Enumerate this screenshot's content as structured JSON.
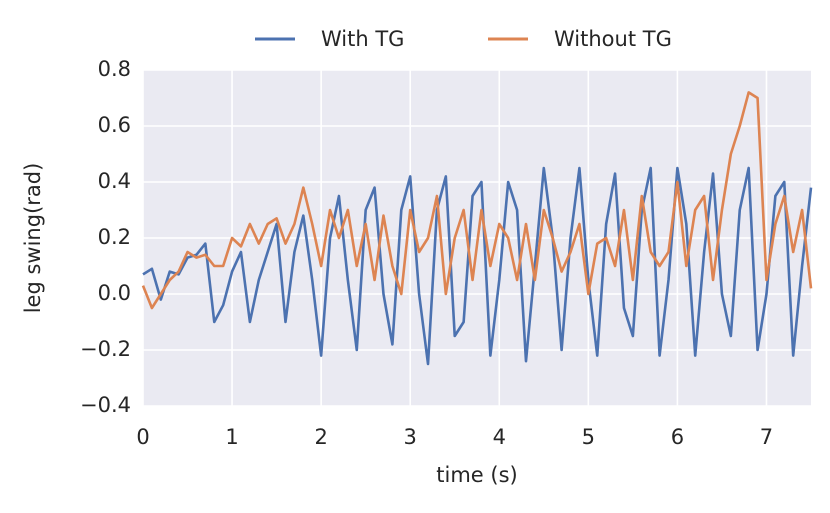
{
  "chart_data": {
    "type": "line",
    "xlabel": "time (s)",
    "ylabel": "leg swing(rad)",
    "x": [
      0,
      0.1,
      0.2,
      0.3,
      0.4,
      0.5,
      0.6,
      0.7,
      0.8,
      0.9,
      1.0,
      1.1,
      1.2,
      1.3,
      1.4,
      1.5,
      1.6,
      1.7,
      1.8,
      1.9,
      2.0,
      2.1,
      2.2,
      2.3,
      2.4,
      2.5,
      2.6,
      2.7,
      2.8,
      2.9,
      3.0,
      3.1,
      3.2,
      3.3,
      3.4,
      3.5,
      3.6,
      3.7,
      3.8,
      3.9,
      4.0,
      4.1,
      4.2,
      4.3,
      4.4,
      4.5,
      4.6,
      4.7,
      4.8,
      4.9,
      5.0,
      5.1,
      5.2,
      5.3,
      5.4,
      5.5,
      5.6,
      5.7,
      5.8,
      5.9,
      6.0,
      6.1,
      6.2,
      6.3,
      6.4,
      6.5,
      6.6,
      6.7,
      6.8,
      6.9,
      7.0,
      7.1,
      7.2,
      7.3,
      7.4,
      7.5
    ],
    "series": [
      {
        "name": "With TG",
        "color": "#4c72b0",
        "values": [
          0.07,
          0.09,
          -0.02,
          0.08,
          0.07,
          0.13,
          0.14,
          0.18,
          -0.1,
          -0.04,
          0.08,
          0.15,
          -0.1,
          0.05,
          0.15,
          0.25,
          -0.1,
          0.15,
          0.28,
          0.05,
          -0.22,
          0.2,
          0.35,
          0.05,
          -0.2,
          0.3,
          0.38,
          0.0,
          -0.18,
          0.3,
          0.42,
          0.0,
          -0.25,
          0.3,
          0.42,
          -0.15,
          -0.1,
          0.35,
          0.4,
          -0.22,
          0.05,
          0.4,
          0.3,
          -0.24,
          0.1,
          0.45,
          0.2,
          -0.2,
          0.2,
          0.45,
          0.05,
          -0.22,
          0.25,
          0.43,
          -0.05,
          -0.15,
          0.3,
          0.45,
          -0.22,
          0.05,
          0.45,
          0.25,
          -0.22,
          0.15,
          0.43,
          0.0,
          -0.15,
          0.3,
          0.45,
          -0.2,
          0.0,
          0.35,
          0.4,
          -0.22,
          0.1,
          0.38
        ]
      },
      {
        "name": "Without TG",
        "color": "#dd8452",
        "values": [
          0.03,
          -0.05,
          0.0,
          0.05,
          0.08,
          0.15,
          0.13,
          0.14,
          0.1,
          0.1,
          0.2,
          0.17,
          0.25,
          0.18,
          0.25,
          0.27,
          0.18,
          0.25,
          0.38,
          0.25,
          0.1,
          0.3,
          0.2,
          0.3,
          0.1,
          0.25,
          0.05,
          0.28,
          0.1,
          0.0,
          0.3,
          0.15,
          0.2,
          0.35,
          0.0,
          0.2,
          0.3,
          0.05,
          0.3,
          0.1,
          0.25,
          0.2,
          0.05,
          0.25,
          0.05,
          0.3,
          0.2,
          0.08,
          0.15,
          0.25,
          0.0,
          0.18,
          0.2,
          0.1,
          0.3,
          0.05,
          0.35,
          0.15,
          0.1,
          0.15,
          0.4,
          0.1,
          0.3,
          0.35,
          0.05,
          0.3,
          0.5,
          0.6,
          0.72,
          0.7,
          0.05,
          0.25,
          0.35,
          0.15,
          0.3,
          0.02
        ]
      }
    ],
    "xlim": [
      0,
      7.5
    ],
    "xticks": [
      0,
      1,
      2,
      3,
      4,
      5,
      6,
      7
    ],
    "ylim": [
      -0.4,
      0.8
    ],
    "yticks": [
      {
        "value": -0.4,
        "label": "−0.4"
      },
      {
        "value": -0.2,
        "label": "−0.2"
      },
      {
        "value": 0,
        "label": "0.0"
      },
      0.2,
      0.4,
      0.6,
      0.8
    ],
    "grid": true,
    "legend": "top"
  }
}
